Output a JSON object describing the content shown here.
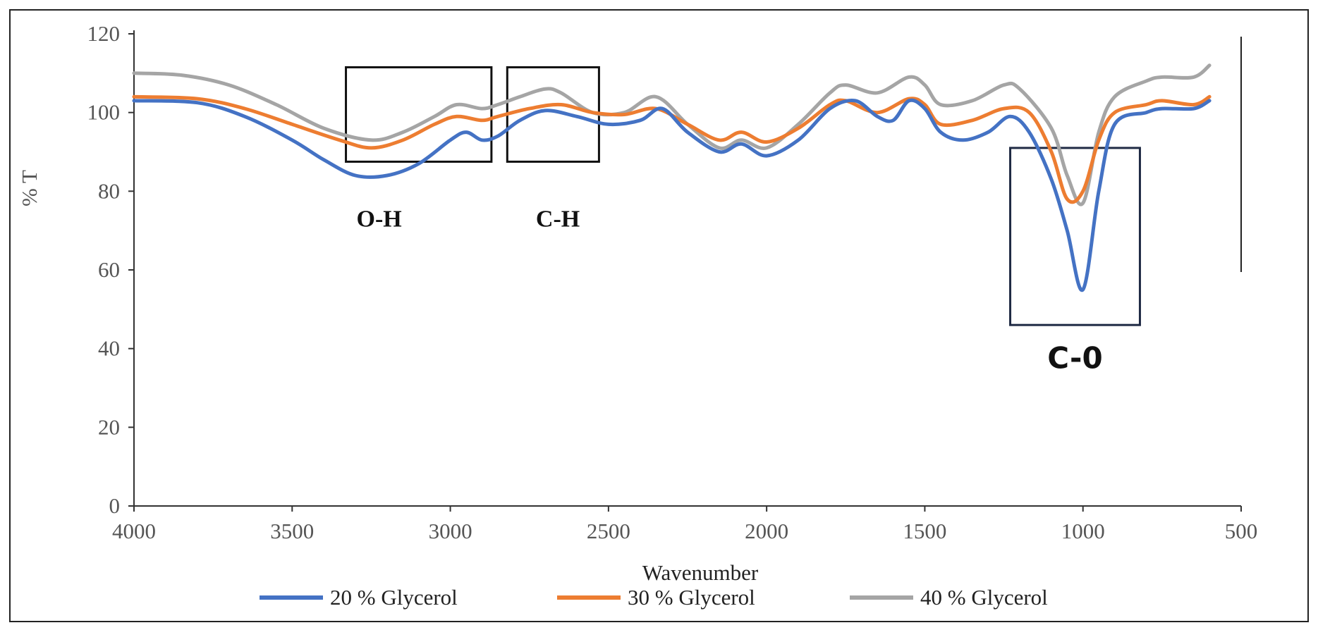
{
  "chart_data": {
    "type": "line",
    "xlabel": "Wavenumber",
    "ylabel": "% T",
    "xlim": [
      4000,
      500
    ],
    "ylim": [
      0,
      120
    ],
    "x_ticks": [
      4000,
      3500,
      3000,
      2500,
      2000,
      1500,
      1000,
      500
    ],
    "y_ticks": [
      0,
      20,
      40,
      60,
      80,
      100,
      120
    ],
    "grid": false,
    "legend_position": "bottom",
    "series": [
      {
        "name": "20 % Glycerol",
        "color": "#4472c4",
        "points": [
          [
            4000,
            103
          ],
          [
            3800,
            102.5
          ],
          [
            3650,
            99
          ],
          [
            3500,
            93
          ],
          [
            3400,
            88
          ],
          [
            3300,
            84
          ],
          [
            3200,
            84
          ],
          [
            3100,
            87
          ],
          [
            3000,
            93
          ],
          [
            2950,
            95
          ],
          [
            2900,
            93
          ],
          [
            2850,
            94
          ],
          [
            2780,
            98
          ],
          [
            2700,
            100.5
          ],
          [
            2600,
            99
          ],
          [
            2500,
            97
          ],
          [
            2400,
            98
          ],
          [
            2330,
            101
          ],
          [
            2250,
            95
          ],
          [
            2150,
            90
          ],
          [
            2080,
            92
          ],
          [
            2000,
            89
          ],
          [
            1900,
            93
          ],
          [
            1800,
            101
          ],
          [
            1720,
            103
          ],
          [
            1650,
            99
          ],
          [
            1600,
            98
          ],
          [
            1550,
            103
          ],
          [
            1500,
            101
          ],
          [
            1450,
            95
          ],
          [
            1380,
            93
          ],
          [
            1300,
            95
          ],
          [
            1230,
            99
          ],
          [
            1170,
            95
          ],
          [
            1100,
            83
          ],
          [
            1050,
            70
          ],
          [
            1000,
            55
          ],
          [
            950,
            80
          ],
          [
            900,
            97
          ],
          [
            800,
            100
          ],
          [
            750,
            101
          ],
          [
            650,
            101
          ],
          [
            600,
            103
          ]
        ]
      },
      {
        "name": "30 % Glycerol",
        "color": "#ed7d31",
        "points": [
          [
            4000,
            104
          ],
          [
            3800,
            103.5
          ],
          [
            3650,
            101
          ],
          [
            3500,
            97
          ],
          [
            3350,
            93
          ],
          [
            3250,
            91
          ],
          [
            3150,
            93
          ],
          [
            3050,
            97
          ],
          [
            2980,
            99
          ],
          [
            2900,
            98
          ],
          [
            2850,
            99
          ],
          [
            2750,
            101
          ],
          [
            2650,
            102
          ],
          [
            2550,
            100
          ],
          [
            2450,
            99.5
          ],
          [
            2350,
            101
          ],
          [
            2250,
            97
          ],
          [
            2150,
            93
          ],
          [
            2080,
            95
          ],
          [
            2000,
            92.5
          ],
          [
            1900,
            96
          ],
          [
            1800,
            102
          ],
          [
            1750,
            103
          ],
          [
            1650,
            100
          ],
          [
            1550,
            103.5
          ],
          [
            1500,
            102
          ],
          [
            1450,
            97
          ],
          [
            1350,
            98
          ],
          [
            1250,
            101
          ],
          [
            1170,
            100
          ],
          [
            1100,
            90
          ],
          [
            1050,
            78
          ],
          [
            1000,
            80
          ],
          [
            950,
            93
          ],
          [
            900,
            100
          ],
          [
            800,
            102
          ],
          [
            750,
            103
          ],
          [
            650,
            102
          ],
          [
            600,
            104
          ]
        ]
      },
      {
        "name": "40 % Glycerol",
        "color": "#a5a5a5",
        "points": [
          [
            4000,
            110
          ],
          [
            3850,
            109.5
          ],
          [
            3700,
            107
          ],
          [
            3550,
            102
          ],
          [
            3400,
            96
          ],
          [
            3250,
            93
          ],
          [
            3150,
            95
          ],
          [
            3050,
            99
          ],
          [
            2980,
            102
          ],
          [
            2900,
            101
          ],
          [
            2850,
            102
          ],
          [
            2780,
            104
          ],
          [
            2700,
            106
          ],
          [
            2650,
            105
          ],
          [
            2550,
            100
          ],
          [
            2450,
            100
          ],
          [
            2350,
            104
          ],
          [
            2250,
            97
          ],
          [
            2150,
            91
          ],
          [
            2080,
            93
          ],
          [
            2000,
            91
          ],
          [
            1900,
            97
          ],
          [
            1800,
            105
          ],
          [
            1750,
            107
          ],
          [
            1650,
            105
          ],
          [
            1550,
            109
          ],
          [
            1500,
            107
          ],
          [
            1450,
            102
          ],
          [
            1350,
            103
          ],
          [
            1250,
            107
          ],
          [
            1200,
            106
          ],
          [
            1100,
            96
          ],
          [
            1050,
            84
          ],
          [
            1000,
            77
          ],
          [
            950,
            95
          ],
          [
            900,
            104
          ],
          [
            800,
            108
          ],
          [
            750,
            109
          ],
          [
            650,
            109
          ],
          [
            600,
            112
          ]
        ]
      }
    ],
    "annotations": [
      {
        "label": "O-H",
        "box": {
          "x_from": 3330,
          "x_to": 2870,
          "y_from": 87.5,
          "y_to": 111.5
        },
        "label_x": 3225,
        "label_y": 71
      },
      {
        "label": "C-H",
        "box": {
          "x_from": 2820,
          "x_to": 2530,
          "y_from": 87.5,
          "y_to": 111.5
        },
        "label_x": 2660,
        "label_y": 71
      },
      {
        "label": "C-0",
        "box": {
          "x_from": 1230,
          "x_to": 820,
          "y_from": 46,
          "y_to": 91
        },
        "label_x": 1025,
        "label_y": 35
      }
    ]
  }
}
